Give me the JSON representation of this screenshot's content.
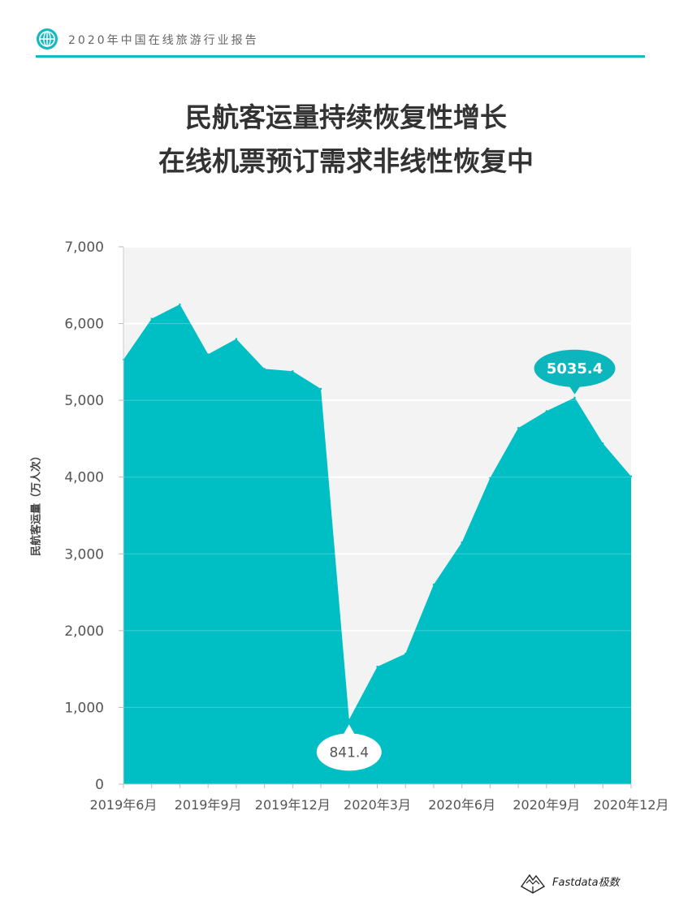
{
  "header": {
    "report_title": "2020年中国在线旅游行业报告",
    "icon": "globe-icon",
    "accent_color": "#17b9c0"
  },
  "title": {
    "line1": "民航客运量持续恢复性增长",
    "line2": "在线机票预订需求非线性恢复中"
  },
  "chart_data": {
    "type": "area",
    "ylabel": "民航客运量（万人次）",
    "ylim": [
      0,
      7000
    ],
    "yticks": [
      "0",
      "1,000",
      "2,000",
      "3,000",
      "4,000",
      "5,000",
      "6,000",
      "7,000"
    ],
    "ytick_values": [
      0,
      1000,
      2000,
      3000,
      4000,
      5000,
      6000,
      7000
    ],
    "x": [
      "2019年6月",
      "2019年7月",
      "2019年8月",
      "2019年9月",
      "2019年10月",
      "2019年11月",
      "2019年12月",
      "2020年1月",
      "2020年2月",
      "2020年3月",
      "2020年4月",
      "2020年5月",
      "2020年6月",
      "2020年7月",
      "2020年8月",
      "2020年9月",
      "2020年10月",
      "2020年11月",
      "2020年12月"
    ],
    "xtick_labels": [
      "2019年6月",
      "2019年9月",
      "2019年12月",
      "2020年3月",
      "2020年6月",
      "2020年9月",
      "2020年12月"
    ],
    "xtick_indices": [
      0,
      3,
      6,
      9,
      12,
      15,
      18
    ],
    "values": [
      5530,
      6063,
      6250,
      5600,
      5800,
      5410,
      5380,
      5150,
      841.4,
      1531,
      1700,
      2600,
      3150,
      3990,
      4640,
      4860,
      5035.4,
      4440,
      4010
    ],
    "annotations": [
      {
        "text": "841.4",
        "index": 8
      },
      {
        "text": "5035.4",
        "index": 16
      }
    ],
    "fill_color": "#00bfc4",
    "plot_background": "#f3f3f3",
    "grid": true
  },
  "footer": {
    "brand": "Fastdata极数",
    "logo_icon": "mountain-logo-icon"
  }
}
